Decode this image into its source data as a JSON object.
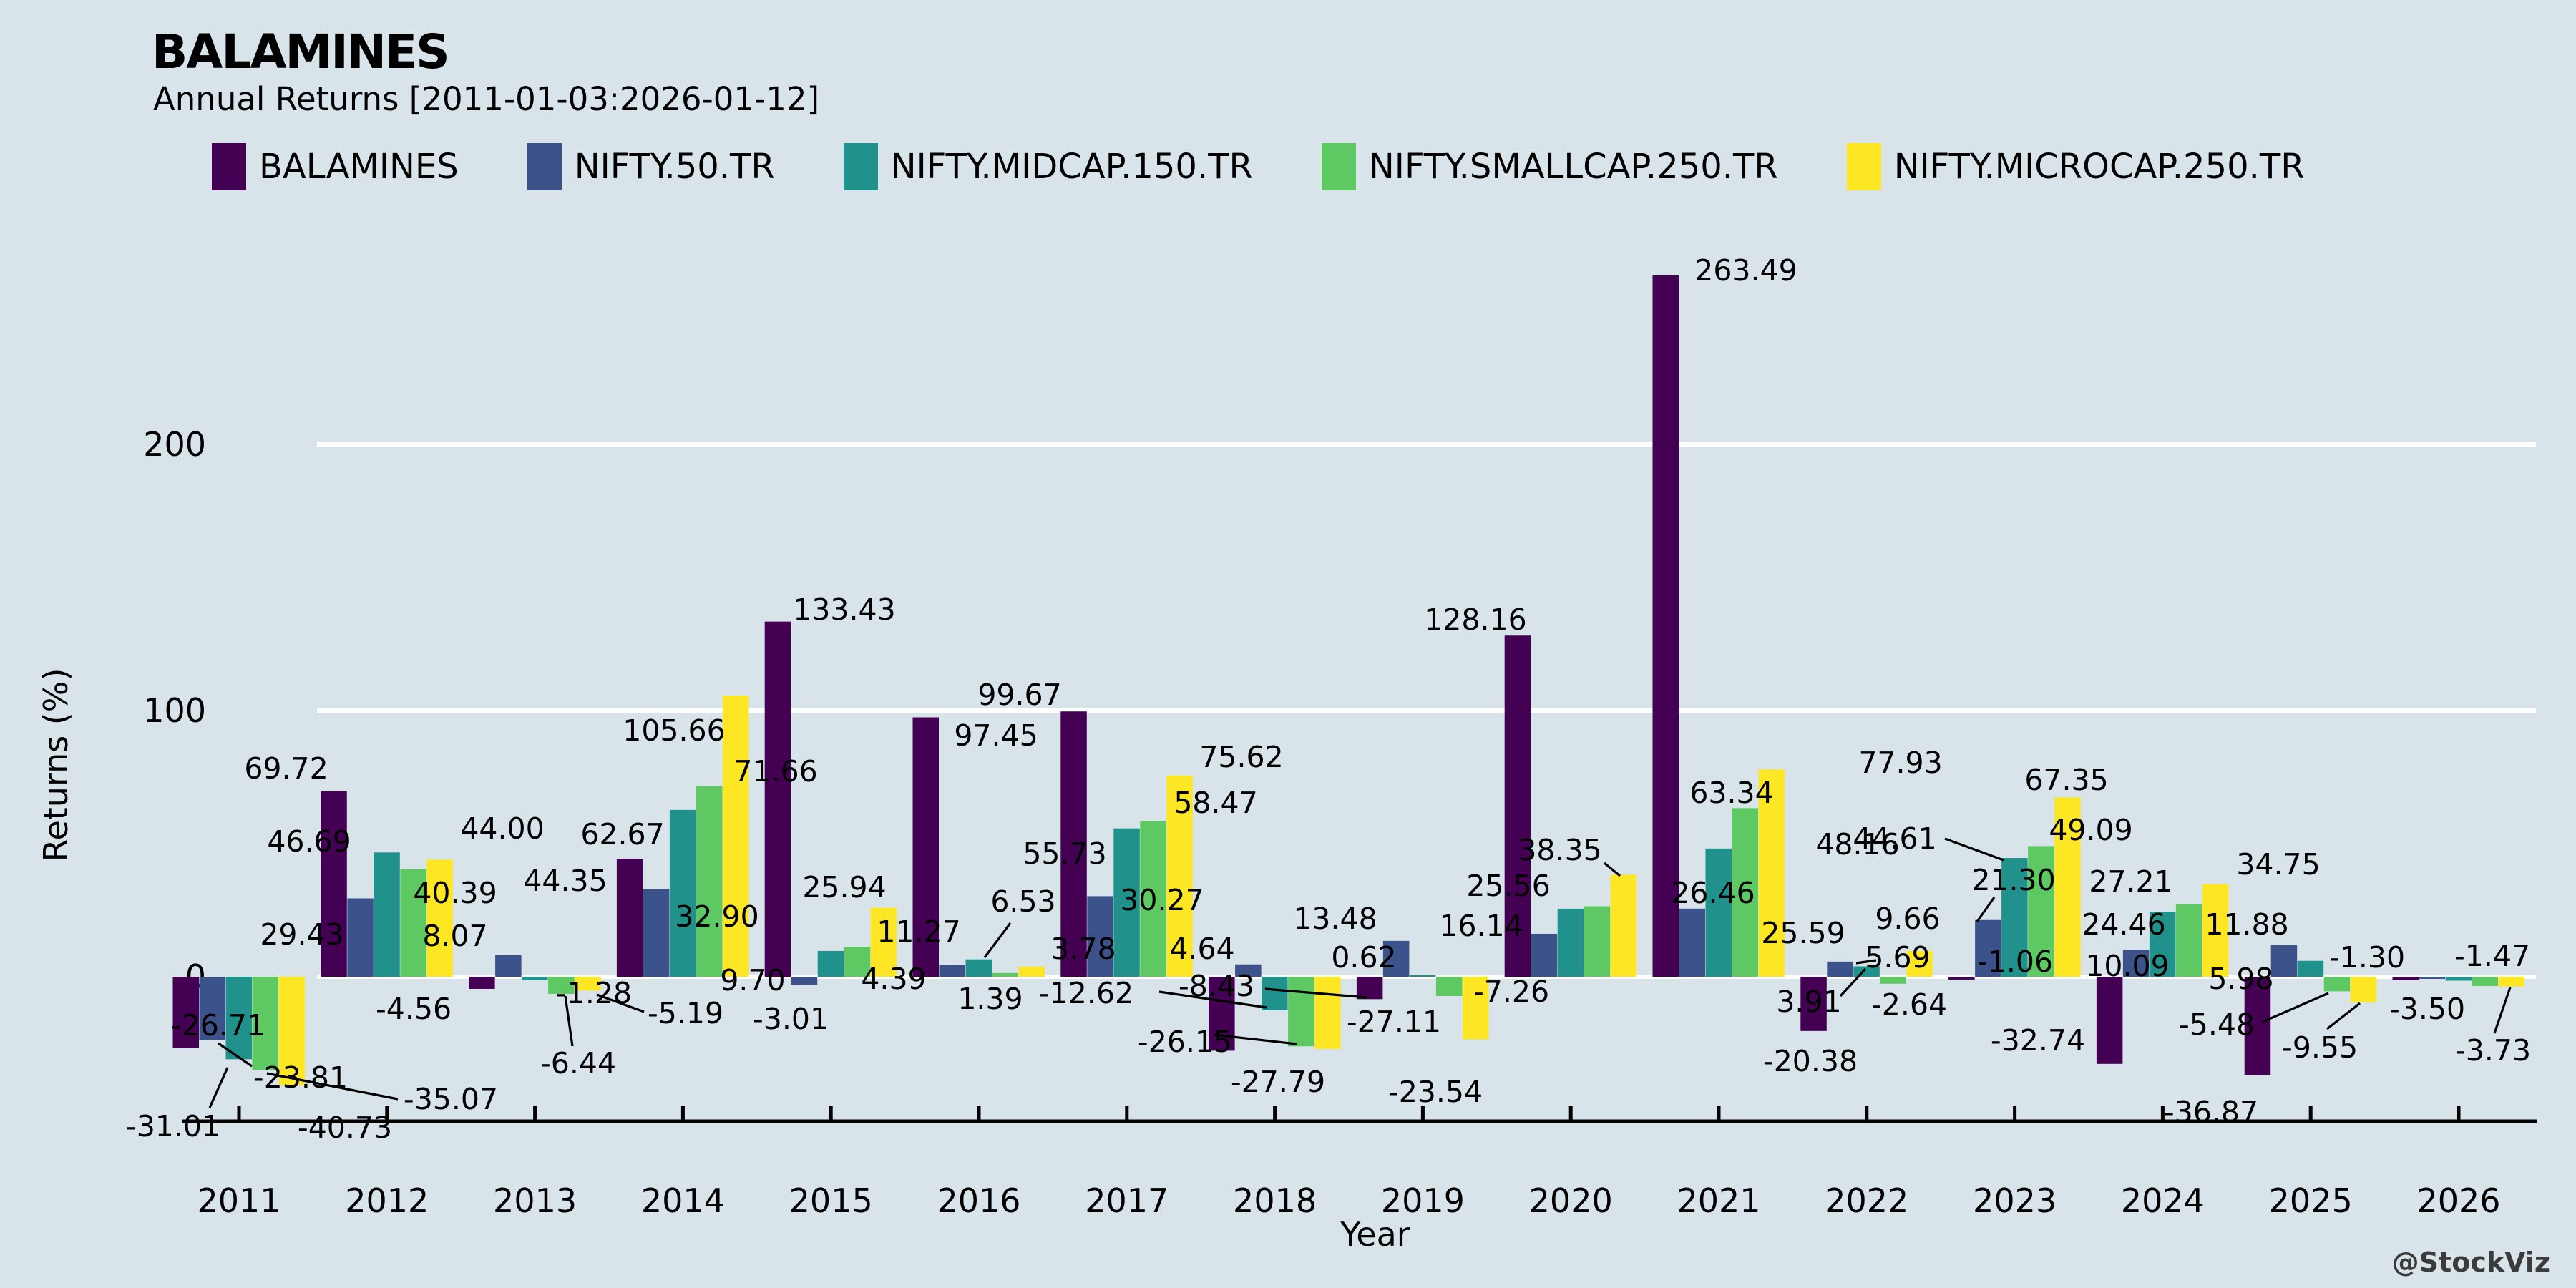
{
  "header": {
    "title": "BALAMINES",
    "subtitle": "Annual Returns [2011-01-03:2026-01-12]"
  },
  "watermark": "@StockViz",
  "colors": {
    "background": "#d8e4ea",
    "gridline": "#ffffff",
    "axis": "#000000",
    "label_text": "#000000",
    "series": [
      "#440154",
      "#3b528b",
      "#21918c",
      "#5ec962",
      "#fde725"
    ]
  },
  "legend": {
    "items": [
      {
        "label": "BALAMINES",
        "color": "#440154"
      },
      {
        "label": "NIFTY.50.TR",
        "color": "#3b528b"
      },
      {
        "label": "NIFTY.MIDCAP.150.TR",
        "color": "#21918c"
      },
      {
        "label": "NIFTY.SMALLCAP.250.TR",
        "color": "#5ec962"
      },
      {
        "label": "NIFTY.MICROCAP.250.TR",
        "color": "#fde725"
      }
    ]
  },
  "axes": {
    "ylabel": "Returns (%)",
    "xlabel": "Year",
    "yticks": [
      0,
      100,
      200
    ],
    "ylim": [
      -74,
      288
    ],
    "grid": "horizontal-white"
  },
  "chart_data": {
    "type": "bar",
    "title": "BALAMINES Annual Returns [2011-01-03:2026-01-12]",
    "xlabel": "Year",
    "ylabel": "Returns (%)",
    "ylim": [
      -74,
      288
    ],
    "yticks": [
      0,
      100,
      200
    ],
    "legend_position": "top",
    "categories": [
      "2011",
      "2012",
      "2013",
      "2014",
      "2015",
      "2016",
      "2017",
      "2018",
      "2019",
      "2020",
      "2021",
      "2022",
      "2023",
      "2024",
      "2025",
      "2026"
    ],
    "series": [
      {
        "name": "BALAMINES",
        "color": "#440154",
        "values": [
          -26.71,
          69.72,
          -4.56,
          44.35,
          133.43,
          97.45,
          99.67,
          -27.79,
          -8.43,
          128.16,
          263.49,
          -20.38,
          -1.06,
          -32.74,
          -36.87,
          -1.3
        ],
        "labels": [
          "-26.71",
          "69.72",
          "-4.56",
          "44.35",
          "133.43",
          "97.45",
          "99.67",
          "-27.79",
          "-8.43",
          "128.16",
          "263.49",
          "-20.38",
          "-1.06",
          "-32.74",
          "-36.87",
          "-1.30"
        ]
      },
      {
        "name": "NIFTY.50.TR",
        "color": "#3b528b",
        "values": [
          -23.81,
          29.43,
          8.07,
          32.9,
          -3.01,
          4.39,
          30.27,
          4.64,
          13.48,
          16.14,
          25.59,
          5.69,
          21.3,
          10.09,
          11.88,
          -0.8
        ],
        "labels": [
          "-23.81",
          "29.43",
          "8.07",
          "32.90",
          "-3.01",
          "4.39",
          "30.27",
          "4.64",
          "13.48",
          "16.14",
          "25.59",
          "5.69",
          "21.30",
          "10.09",
          "11.88",
          null
        ]
      },
      {
        "name": "NIFTY.MIDCAP.150.TR",
        "color": "#21918c",
        "values": [
          -31.01,
          46.69,
          -1.28,
          62.67,
          9.7,
          6.53,
          55.73,
          -12.62,
          0.62,
          25.56,
          48.16,
          3.91,
          44.61,
          24.46,
          5.98,
          -1.47
        ],
        "labels": [
          "-31.01",
          "46.69",
          "-1.28",
          "62.67",
          "9.70",
          "6.53",
          "55.73",
          "-12.62",
          "0.62",
          "25.56",
          "48.16",
          "3.91",
          "44.61",
          "24.46",
          "5.98",
          "-1.47"
        ]
      },
      {
        "name": "NIFTY.SMALLCAP.250.TR",
        "color": "#5ec962",
        "values": [
          -35.07,
          40.39,
          -6.44,
          71.66,
          11.27,
          1.39,
          58.47,
          -26.15,
          -7.26,
          26.46,
          63.34,
          -2.64,
          49.09,
          27.21,
          -5.48,
          -3.5
        ],
        "labels": [
          "-35.07",
          "40.39",
          "-6.44",
          "71.66",
          "11.27",
          "1.39",
          "58.47",
          "-26.15",
          "-7.26",
          "26.46",
          "63.34",
          "-2.64",
          "49.09",
          "27.21",
          "-5.48",
          "-3.50"
        ]
      },
      {
        "name": "NIFTY.MICROCAP.250.TR",
        "color": "#fde725",
        "values": [
          -40.73,
          44.0,
          -5.19,
          105.66,
          25.94,
          3.78,
          75.62,
          -27.11,
          -23.54,
          38.35,
          77.93,
          9.66,
          67.35,
          34.75,
          -9.55,
          -3.73
        ],
        "labels": [
          "-40.73",
          "44.00",
          "-5.19",
          "105.66",
          "25.94",
          "3.78",
          "75.62",
          "-27.11",
          "-23.54",
          "38.35",
          "77.93",
          "9.66",
          "67.35",
          "34.75",
          "-9.55",
          "-3.73"
        ]
      }
    ]
  }
}
